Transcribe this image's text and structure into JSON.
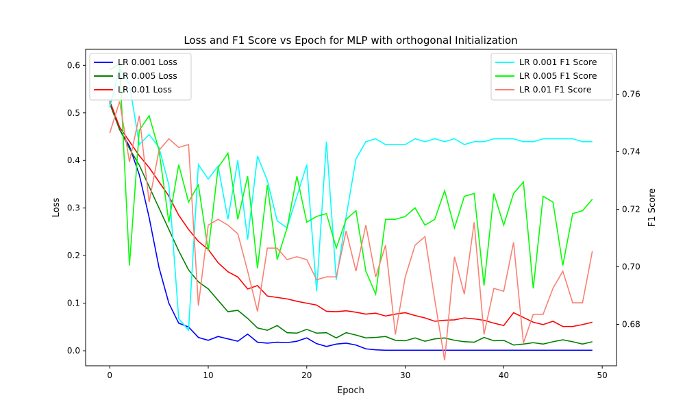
{
  "chart_data": {
    "type": "line",
    "title": "Loss and F1 Score vs Epoch for MLP with orthogonal Initialization",
    "xlabel": "Epoch",
    "ylabel_left": "Loss",
    "ylabel_right": "F1 Score",
    "xlim": [
      -2.45,
      51.45
    ],
    "ylim_left": [
      -0.0316,
      0.6336
    ],
    "ylim_right": [
      0.6656,
      0.7756
    ],
    "xticks": [
      0,
      10,
      20,
      30,
      40,
      50
    ],
    "yticks_left": [
      0.0,
      0.1,
      0.2,
      0.3,
      0.4,
      0.5,
      0.6
    ],
    "yticks_right": [
      0.68,
      0.7,
      0.72,
      0.74,
      0.76
    ],
    "xtick_labels": [
      "0",
      "10",
      "20",
      "30",
      "40",
      "50"
    ],
    "ytick_labels_left": [
      "0.0",
      "0.1",
      "0.2",
      "0.3",
      "0.4",
      "0.5",
      "0.6"
    ],
    "ytick_labels_right": [
      "0.68",
      "0.70",
      "0.72",
      "0.74",
      "0.76"
    ],
    "legend_left_position": "upper-left",
    "legend_right_position": "upper-right",
    "x": [
      0,
      1,
      2,
      3,
      4,
      5,
      6,
      7,
      8,
      9,
      10,
      11,
      12,
      13,
      14,
      15,
      16,
      17,
      18,
      19,
      20,
      21,
      22,
      23,
      24,
      25,
      26,
      27,
      28,
      29,
      30,
      31,
      32,
      33,
      34,
      35,
      36,
      37,
      38,
      39,
      40,
      41,
      42,
      43,
      44,
      45,
      46,
      47,
      48,
      49
    ],
    "loss_series": [
      {
        "name": "LR 0.001 Loss",
        "color": "#0000ff",
        "values": [
          0.52,
          0.465,
          0.43,
          0.37,
          0.28,
          0.175,
          0.1,
          0.058,
          0.05,
          0.028,
          0.022,
          0.03,
          0.025,
          0.02,
          0.035,
          0.018,
          0.016,
          0.018,
          0.017,
          0.02,
          0.027,
          0.015,
          0.009,
          0.014,
          0.016,
          0.012,
          0.004,
          0.002,
          0.001,
          0.001,
          0.001,
          0.001,
          0.001,
          0.001,
          0.001,
          0.001,
          0.001,
          0.001,
          0.001,
          0.001,
          0.001,
          0.001,
          0.001,
          0.001,
          0.001,
          0.001,
          0.001,
          0.001,
          0.001,
          0.001
        ]
      },
      {
        "name": "LR 0.005 Loss",
        "color": "#008000",
        "values": [
          0.52,
          0.465,
          0.425,
          0.39,
          0.345,
          0.3,
          0.255,
          0.21,
          0.17,
          0.145,
          0.13,
          0.106,
          0.082,
          0.085,
          0.068,
          0.048,
          0.043,
          0.053,
          0.038,
          0.037,
          0.045,
          0.037,
          0.038,
          0.027,
          0.038,
          0.033,
          0.027,
          0.028,
          0.03,
          0.022,
          0.021,
          0.027,
          0.02,
          0.025,
          0.027,
          0.022,
          0.019,
          0.018,
          0.028,
          0.021,
          0.022,
          0.012,
          0.014,
          0.017,
          0.014,
          0.019,
          0.023,
          0.019,
          0.014,
          0.019
        ]
      },
      {
        "name": "LR 0.01 Loss",
        "color": "#ff0000",
        "values": [
          0.525,
          0.47,
          0.44,
          0.41,
          0.385,
          0.355,
          0.325,
          0.285,
          0.255,
          0.23,
          0.213,
          0.185,
          0.166,
          0.155,
          0.13,
          0.137,
          0.115,
          0.112,
          0.109,
          0.104,
          0.1,
          0.096,
          0.083,
          0.082,
          0.084,
          0.081,
          0.077,
          0.079,
          0.073,
          0.077,
          0.08,
          0.074,
          0.069,
          0.062,
          0.064,
          0.065,
          0.069,
          0.067,
          0.064,
          0.058,
          0.053,
          0.08,
          0.07,
          0.06,
          0.055,
          0.062,
          0.051,
          0.051,
          0.055,
          0.06
        ]
      }
    ],
    "f1_series": [
      {
        "name": "LR 0.001 F1 Score",
        "color": "#00ffff",
        "values": [
          0.7555,
          0.769,
          0.7635,
          0.7425,
          0.746,
          0.7415,
          0.7285,
          0.682,
          0.678,
          0.7355,
          0.7305,
          0.735,
          0.7165,
          0.737,
          0.7095,
          0.7385,
          0.73,
          0.716,
          0.7135,
          0.7245,
          0.7355,
          0.6915,
          0.7435,
          0.6955,
          0.7175,
          0.7375,
          0.7435,
          0.7445,
          0.7425,
          0.7425,
          0.7425,
          0.7445,
          0.7435,
          0.7445,
          0.7435,
          0.7445,
          0.7425,
          0.7435,
          0.7435,
          0.7445,
          0.7445,
          0.7445,
          0.7435,
          0.7435,
          0.7445,
          0.7445,
          0.7445,
          0.7445,
          0.7435,
          0.7435
        ]
      },
      {
        "name": "LR 0.005 F1 Score",
        "color": "#00ff00",
        "values": [
          0.7685,
          0.7705,
          0.7005,
          0.7475,
          0.7525,
          0.7405,
          0.7155,
          0.7355,
          0.7225,
          0.7285,
          0.7055,
          0.7345,
          0.7395,
          0.7165,
          0.7315,
          0.6995,
          0.7285,
          0.7025,
          0.7135,
          0.7315,
          0.7155,
          0.7175,
          0.7185,
          0.7065,
          0.7165,
          0.7195,
          0.6985,
          0.6905,
          0.7165,
          0.7165,
          0.7175,
          0.7205,
          0.7145,
          0.7165,
          0.7265,
          0.7135,
          0.7245,
          0.7255,
          0.6935,
          0.7255,
          0.7145,
          0.7255,
          0.7295,
          0.6925,
          0.7245,
          0.7225,
          0.7005,
          0.7185,
          0.7195,
          0.7235
        ]
      },
      {
        "name": "LR 0.01 F1 Score",
        "color": "#fa8072",
        "values": [
          0.7465,
          0.7575,
          0.7365,
          0.7525,
          0.7225,
          0.7405,
          0.7445,
          0.7415,
          0.7425,
          0.6865,
          0.7145,
          0.7165,
          0.7145,
          0.7115,
          0.6985,
          0.6845,
          0.7065,
          0.7065,
          0.7025,
          0.7035,
          0.7025,
          0.6955,
          0.6965,
          0.6965,
          0.7125,
          0.6985,
          0.7145,
          0.6965,
          0.7075,
          0.6765,
          0.6965,
          0.7075,
          0.7105,
          0.6885,
          0.6675,
          0.7035,
          0.6905,
          0.7155,
          0.6765,
          0.6925,
          0.6915,
          0.7085,
          0.6735,
          0.6835,
          0.6835,
          0.6925,
          0.6985,
          0.6875,
          0.6875,
          0.7055
        ]
      }
    ]
  }
}
